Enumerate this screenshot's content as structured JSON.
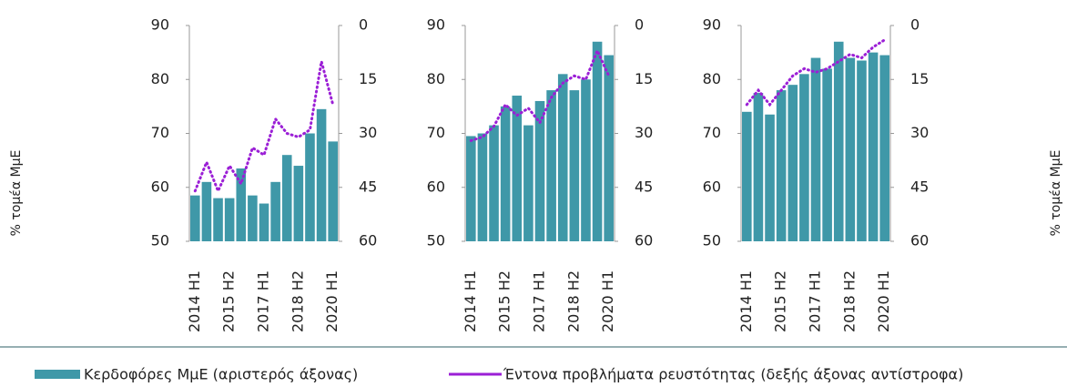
{
  "chart_data": [
    {
      "type": "bar_line",
      "ylabel": "% τομέα ΜμΕ",
      "categories": [
        "2014 H1",
        null,
        null,
        "2015 H2",
        null,
        null,
        "2017 H1",
        null,
        null,
        "2018 H2",
        null,
        null,
        "2020 H1"
      ],
      "series": [
        {
          "name": "Κερδοφόρες ΜμΕ (αριστερός άξονας)",
          "color": "#3f98a8",
          "values": [
            58.5,
            61,
            58,
            58,
            63.5,
            58.5,
            57,
            61,
            66,
            64,
            70,
            74.5,
            68.5
          ]
        },
        {
          "name": "Έντονα προβλήματα ρευστότητας (δεξής άξονας αντίστροφα)",
          "color": "#9b1fd6",
          "axis": "y2",
          "values": [
            46,
            38,
            46,
            39,
            44,
            34,
            36,
            26,
            30,
            31,
            29,
            10,
            22
          ]
        }
      ],
      "ylim": [
        50,
        90
      ],
      "yticks": [
        50,
        60,
        70,
        80,
        90
      ],
      "y2lim": [
        60,
        0
      ],
      "y2ticks": [
        0,
        15,
        30,
        45,
        60
      ]
    },
    {
      "type": "bar_line",
      "categories": [
        "2014 H1",
        null,
        null,
        "2015 H2",
        null,
        null,
        "2017 H1",
        null,
        null,
        "2018 H2",
        null,
        null,
        "2020 H1"
      ],
      "series": [
        {
          "color": "#3f98a8",
          "values": [
            69.5,
            70,
            71.5,
            75,
            77,
            71.5,
            76,
            78,
            81,
            78,
            80,
            87,
            84.5
          ]
        },
        {
          "color": "#9b1fd6",
          "axis": "y2",
          "values": [
            32,
            31,
            28,
            22,
            25,
            23,
            27,
            20,
            16,
            14,
            15,
            7,
            14
          ]
        }
      ],
      "ylim": [
        50,
        90
      ],
      "yticks": [
        50,
        60,
        70,
        80,
        90
      ],
      "y2lim": [
        60,
        0
      ],
      "y2ticks": [
        0,
        15,
        30,
        45,
        60
      ]
    },
    {
      "type": "bar_line",
      "y2label": "% τομέα ΜμΕ",
      "categories": [
        "2014 H1",
        null,
        null,
        "2015 H2",
        null,
        null,
        "2017 H1",
        null,
        null,
        "2018 H2",
        null,
        null,
        "2020 H1"
      ],
      "series": [
        {
          "color": "#3f98a8",
          "values": [
            74,
            77.5,
            73.5,
            78,
            79,
            81,
            84,
            82,
            87,
            84,
            83.5,
            85,
            84.5
          ]
        },
        {
          "color": "#9b1fd6",
          "axis": "y2",
          "values": [
            22,
            18,
            22,
            18,
            14,
            12,
            13,
            12,
            10,
            8,
            9,
            6,
            4
          ]
        }
      ],
      "ylim": [
        50,
        90
      ],
      "yticks": [
        50,
        60,
        70,
        80,
        90
      ],
      "y2lim": [
        60,
        0
      ],
      "y2ticks": [
        0,
        15,
        30,
        45,
        60
      ]
    }
  ]
}
